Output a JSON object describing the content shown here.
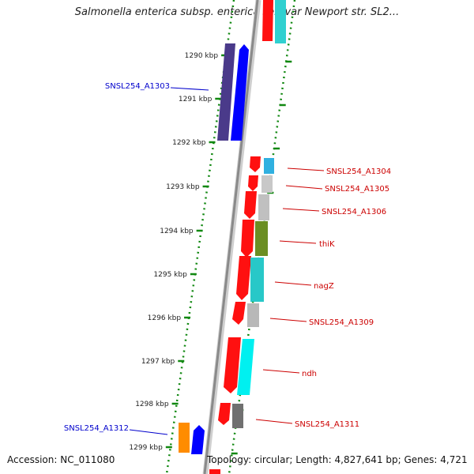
{
  "title": "Salmonella enterica subsp. enterica serovar Newport str. SL2...",
  "footer": {
    "accession": "Accession: NC_011080",
    "summary": "Topology: circular; Length: 4,827,641 bp; Genes: 4,721"
  },
  "ticks": [
    "1290 kbp",
    "1291 kbp",
    "1292 kbp",
    "1293 kbp",
    "1294 kbp",
    "1295 kbp",
    "1296 kbp",
    "1297 kbp",
    "1298 kbp",
    "1299 kbp"
  ],
  "left_labels": [
    {
      "text": "SNSL254_A1303",
      "color": "#0000cc"
    },
    {
      "text": "SNSL254_A1312",
      "color": "#0000cc"
    }
  ],
  "right_labels": [
    {
      "text": "SNSL254_A1304",
      "color": "#cc0000"
    },
    {
      "text": "SNSL254_A1305",
      "color": "#cc0000"
    },
    {
      "text": "SNSL254_A1306",
      "color": "#cc0000"
    },
    {
      "text": "thiK",
      "color": "#cc0000"
    },
    {
      "text": "nagZ",
      "color": "#cc0000"
    },
    {
      "text": "SNSL254_A1309",
      "color": "#cc0000"
    },
    {
      "text": "ndh",
      "color": "#cc0000"
    },
    {
      "text": "SNSL254_A1311",
      "color": "#cc0000"
    }
  ],
  "colors": {
    "forward_gene": "#0000ff",
    "reverse_gene": "#ff0000",
    "backbone": "#8a8a8a",
    "dotted_guide": "#118811",
    "tick": "#118811"
  }
}
